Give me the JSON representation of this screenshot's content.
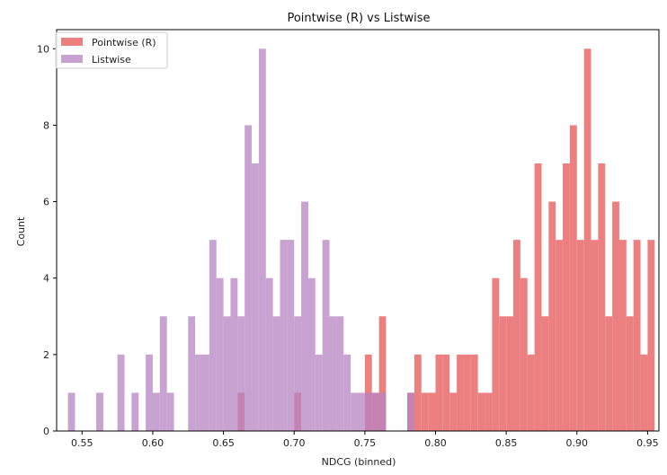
{
  "chart_data": {
    "type": "histogram",
    "title": "Pointwise (R) vs Listwise",
    "xlabel": "NDCG (binned)",
    "ylabel": "Count",
    "xlim": [
      0.532,
      0.958
    ],
    "ylim": [
      0,
      10.5
    ],
    "xticks": [
      0.55,
      0.6,
      0.65,
      0.7,
      0.75,
      0.8,
      0.85,
      0.9,
      0.95
    ],
    "xtick_labels": [
      "0.55",
      "0.60",
      "0.65",
      "0.70",
      "0.75",
      "0.80",
      "0.85",
      "0.90",
      "0.95"
    ],
    "yticks": [
      0,
      2,
      4,
      6,
      8,
      10
    ],
    "ytick_labels": [
      "0",
      "2",
      "4",
      "6",
      "8",
      "10"
    ],
    "bin_width": 0.005,
    "grid": false,
    "legend_position": "top-left",
    "series": [
      {
        "name": "Pointwise (R)",
        "color": "#e96a6a",
        "alpha": 0.85,
        "bins": [
          [
            0.66,
            1
          ],
          [
            0.7,
            1
          ],
          [
            0.75,
            2
          ],
          [
            0.755,
            1
          ],
          [
            0.76,
            3
          ],
          [
            0.78,
            1
          ],
          [
            0.785,
            2
          ],
          [
            0.79,
            1
          ],
          [
            0.795,
            1
          ],
          [
            0.8,
            2
          ],
          [
            0.805,
            2
          ],
          [
            0.81,
            1
          ],
          [
            0.815,
            2
          ],
          [
            0.82,
            2
          ],
          [
            0.825,
            2
          ],
          [
            0.83,
            1
          ],
          [
            0.835,
            1
          ],
          [
            0.84,
            4
          ],
          [
            0.845,
            3
          ],
          [
            0.85,
            3
          ],
          [
            0.855,
            5
          ],
          [
            0.86,
            4
          ],
          [
            0.865,
            2
          ],
          [
            0.87,
            7
          ],
          [
            0.875,
            3
          ],
          [
            0.88,
            6
          ],
          [
            0.885,
            5
          ],
          [
            0.89,
            7
          ],
          [
            0.895,
            8
          ],
          [
            0.9,
            5
          ],
          [
            0.905,
            10
          ],
          [
            0.91,
            5
          ],
          [
            0.915,
            7
          ],
          [
            0.92,
            3
          ],
          [
            0.925,
            6
          ],
          [
            0.93,
            5
          ],
          [
            0.935,
            3
          ],
          [
            0.94,
            5
          ],
          [
            0.945,
            2
          ],
          [
            0.95,
            5
          ]
        ]
      },
      {
        "name": "Listwise",
        "color": "#b683c2",
        "alpha": 0.75,
        "bins": [
          [
            0.54,
            1
          ],
          [
            0.56,
            1
          ],
          [
            0.575,
            2
          ],
          [
            0.585,
            1
          ],
          [
            0.595,
            2
          ],
          [
            0.6,
            1
          ],
          [
            0.605,
            3
          ],
          [
            0.61,
            1
          ],
          [
            0.625,
            3
          ],
          [
            0.63,
            2
          ],
          [
            0.635,
            2
          ],
          [
            0.64,
            5
          ],
          [
            0.645,
            4
          ],
          [
            0.65,
            3
          ],
          [
            0.655,
            4
          ],
          [
            0.66,
            3
          ],
          [
            0.665,
            8
          ],
          [
            0.67,
            7
          ],
          [
            0.675,
            10
          ],
          [
            0.68,
            4
          ],
          [
            0.685,
            3
          ],
          [
            0.69,
            5
          ],
          [
            0.695,
            5
          ],
          [
            0.7,
            3
          ],
          [
            0.705,
            6
          ],
          [
            0.71,
            4
          ],
          [
            0.715,
            2
          ],
          [
            0.72,
            5
          ],
          [
            0.725,
            3
          ],
          [
            0.73,
            3
          ],
          [
            0.735,
            2
          ],
          [
            0.74,
            1
          ],
          [
            0.745,
            1
          ],
          [
            0.75,
            1
          ],
          [
            0.755,
            1
          ],
          [
            0.76,
            1
          ],
          [
            0.78,
            1
          ]
        ]
      }
    ]
  }
}
